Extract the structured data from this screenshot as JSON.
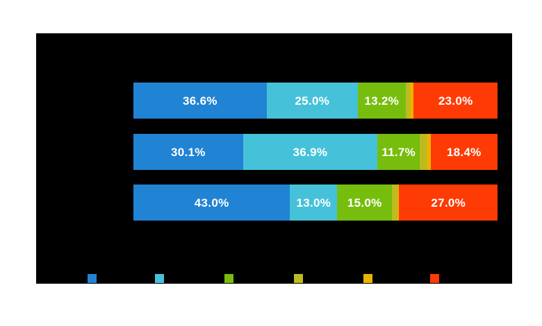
{
  "page": {
    "background_color": "#ffffff"
  },
  "chart": {
    "plot_area_color": "#000000",
    "label_text_color": "#ffffff",
    "palette": {
      "blue": "#2183d3",
      "cyan": "#45c2d9",
      "green": "#77bd0e",
      "olive": "#bcbb1f",
      "gold": "#e9b400",
      "red": "#fe3b05"
    }
  },
  "chart_data": {
    "type": "bar",
    "variant": "horizontal-stacked",
    "unit": "percent",
    "x_range": [
      0,
      100
    ],
    "grid": false,
    "legend_position": "bottom",
    "legend": [
      {
        "color_name": "blue",
        "color": "#2183d3",
        "label": ""
      },
      {
        "color_name": "cyan",
        "color": "#45c2d9",
        "label": ""
      },
      {
        "color_name": "green",
        "color": "#77bd0e",
        "label": ""
      },
      {
        "color_name": "olive",
        "color": "#bcbb1f",
        "label": ""
      },
      {
        "color_name": "gold",
        "color": "#e9b400",
        "label": ""
      },
      {
        "color_name": "red",
        "color": "#fe3b05",
        "label": ""
      }
    ],
    "rows": [
      {
        "segments": [
          {
            "color_name": "blue",
            "value": 36.6,
            "label": "36.6%"
          },
          {
            "color_name": "cyan",
            "value": 25.0,
            "label": "25.0%"
          },
          {
            "color_name": "green",
            "value": 13.2,
            "label": "13.2%"
          },
          {
            "color_name": "olive",
            "value": 1.2,
            "label": ""
          },
          {
            "color_name": "gold",
            "value": 1.0,
            "label": ""
          },
          {
            "color_name": "red",
            "value": 23.0,
            "label": "23.0%"
          }
        ]
      },
      {
        "segments": [
          {
            "color_name": "blue",
            "value": 30.1,
            "label": "30.1%"
          },
          {
            "color_name": "cyan",
            "value": 36.9,
            "label": "36.9%"
          },
          {
            "color_name": "green",
            "value": 11.7,
            "label": "11.7%"
          },
          {
            "color_name": "olive",
            "value": 1.9,
            "label": ""
          },
          {
            "color_name": "gold",
            "value": 1.0,
            "label": ""
          },
          {
            "color_name": "red",
            "value": 18.4,
            "label": "18.4%"
          }
        ]
      },
      {
        "segments": [
          {
            "color_name": "blue",
            "value": 43.0,
            "label": "43.0%"
          },
          {
            "color_name": "cyan",
            "value": 13.0,
            "label": "13.0%"
          },
          {
            "color_name": "green",
            "value": 15.0,
            "label": "15.0%"
          },
          {
            "color_name": "olive",
            "value": 1.5,
            "label": ""
          },
          {
            "color_name": "gold",
            "value": 0.5,
            "label": ""
          },
          {
            "color_name": "red",
            "value": 27.0,
            "label": "27.0%"
          }
        ]
      }
    ]
  }
}
